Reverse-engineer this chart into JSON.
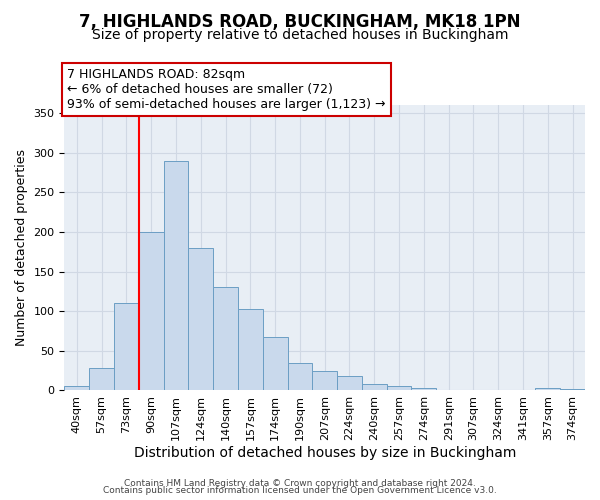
{
  "title": "7, HIGHLANDS ROAD, BUCKINGHAM, MK18 1PN",
  "subtitle": "Size of property relative to detached houses in Buckingham",
  "xlabel": "Distribution of detached houses by size in Buckingham",
  "ylabel": "Number of detached properties",
  "categories": [
    "40sqm",
    "57sqm",
    "73sqm",
    "90sqm",
    "107sqm",
    "124sqm",
    "140sqm",
    "157sqm",
    "174sqm",
    "190sqm",
    "207sqm",
    "224sqm",
    "240sqm",
    "257sqm",
    "274sqm",
    "291sqm",
    "307sqm",
    "324sqm",
    "341sqm",
    "357sqm",
    "374sqm"
  ],
  "values": [
    5,
    28,
    110,
    200,
    290,
    180,
    130,
    103,
    68,
    35,
    25,
    18,
    8,
    5,
    3,
    1,
    0,
    1,
    0,
    3,
    2
  ],
  "bar_color": "#c9d9ec",
  "bar_edge_color": "#6b9ec4",
  "background_color": "#ffffff",
  "ax_background_color": "#e8eef5",
  "grid_color": "#d0d8e4",
  "annotation_line1": "7 HIGHLANDS ROAD: 82sqm",
  "annotation_line2": "← 6% of detached houses are smaller (72)",
  "annotation_line3": "93% of semi-detached houses are larger (1,123) →",
  "annotation_box_color": "#ffffff",
  "annotation_box_edge_color": "#cc0000",
  "ylim": [
    0,
    360
  ],
  "title_fontsize": 12,
  "subtitle_fontsize": 10,
  "xlabel_fontsize": 10,
  "ylabel_fontsize": 9,
  "tick_fontsize": 8,
  "annot_fontsize": 9,
  "footer_line1": "Contains HM Land Registry data © Crown copyright and database right 2024.",
  "footer_line2": "Contains public sector information licensed under the Open Government Licence v3.0."
}
